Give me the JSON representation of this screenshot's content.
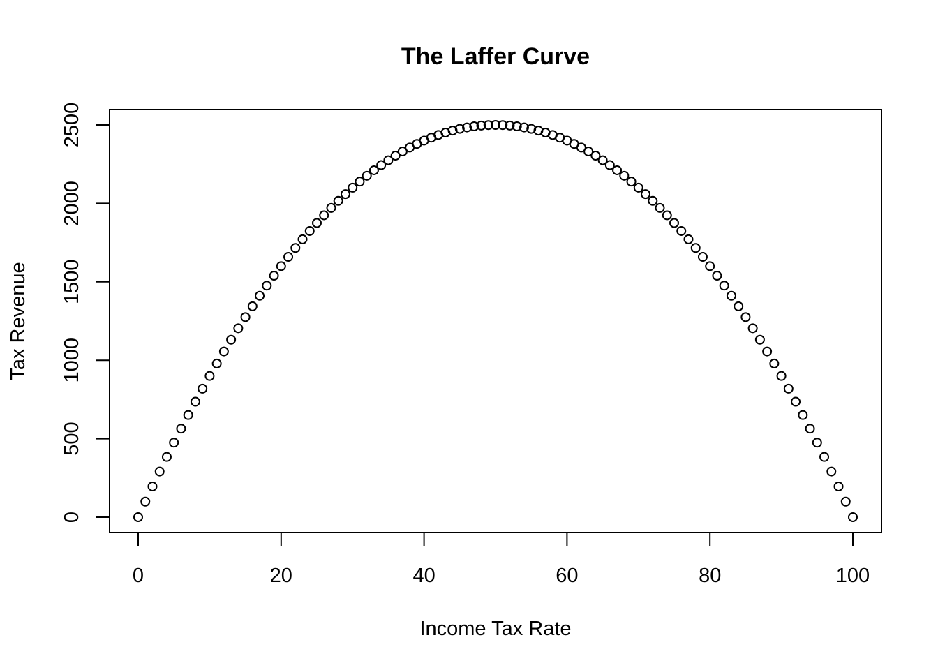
{
  "chart_data": {
    "type": "scatter",
    "title": "The Laffer Curve",
    "xlabel": "Income Tax Rate",
    "ylabel": "Tax Revenue",
    "xlim": [
      0,
      100
    ],
    "ylim": [
      0,
      2500
    ],
    "xticks": [
      0,
      20,
      40,
      60,
      80,
      100
    ],
    "yticks": [
      0,
      500,
      1000,
      1500,
      2000,
      2500
    ],
    "grid": false,
    "series": [
      {
        "x": [
          0,
          1,
          2,
          3,
          4,
          5,
          6,
          7,
          8,
          9,
          10,
          11,
          12,
          13,
          14,
          15,
          16,
          17,
          18,
          19,
          20,
          21,
          22,
          23,
          24,
          25,
          26,
          27,
          28,
          29,
          30,
          31,
          32,
          33,
          34,
          35,
          36,
          37,
          38,
          39,
          40,
          41,
          42,
          43,
          44,
          45,
          46,
          47,
          48,
          49,
          50,
          51,
          52,
          53,
          54,
          55,
          56,
          57,
          58,
          59,
          60,
          61,
          62,
          63,
          64,
          65,
          66,
          67,
          68,
          69,
          70,
          71,
          72,
          73,
          74,
          75,
          76,
          77,
          78,
          79,
          80,
          81,
          82,
          83,
          84,
          85,
          86,
          87,
          88,
          89,
          90,
          91,
          92,
          93,
          94,
          95,
          96,
          97,
          98,
          99,
          100
        ],
        "y": [
          0,
          99,
          196,
          291,
          384,
          475,
          564,
          651,
          736,
          819,
          900,
          979,
          1056,
          1131,
          1204,
          1275,
          1344,
          1411,
          1476,
          1539,
          1600,
          1659,
          1716,
          1771,
          1824,
          1875,
          1924,
          1971,
          2016,
          2059,
          2100,
          2139,
          2176,
          2211,
          2244,
          2275,
          2304,
          2331,
          2356,
          2379,
          2400,
          2419,
          2436,
          2451,
          2464,
          2475,
          2484,
          2491,
          2496,
          2499,
          2500,
          2499,
          2496,
          2491,
          2484,
          2475,
          2464,
          2451,
          2436,
          2419,
          2400,
          2379,
          2356,
          2331,
          2304,
          2275,
          2244,
          2211,
          2176,
          2139,
          2100,
          2059,
          2016,
          1971,
          1924,
          1875,
          1824,
          1771,
          1716,
          1659,
          1600,
          1539,
          1476,
          1411,
          1344,
          1275,
          1204,
          1131,
          1056,
          979,
          900,
          819,
          736,
          651,
          564,
          475,
          384,
          291,
          196,
          99,
          0
        ]
      }
    ]
  }
}
